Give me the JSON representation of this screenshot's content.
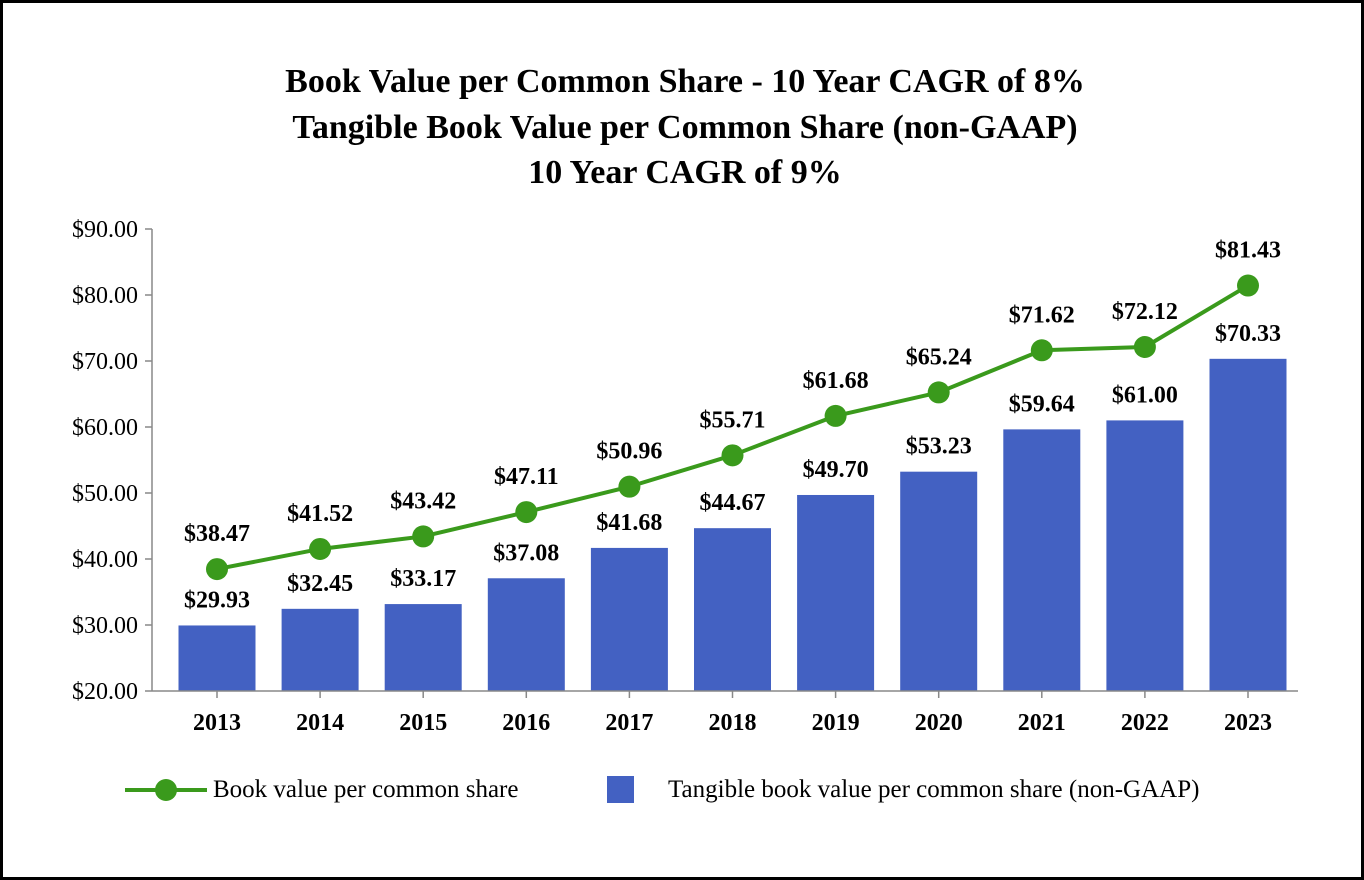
{
  "chart_data": {
    "type": "bar",
    "title_lines": [
      "Book Value per Common Share - 10 Year CAGR of 8%",
      "Tangible Book Value per Common Share (non-GAAP)",
      "10 Year CAGR of 9%"
    ],
    "categories": [
      "2013",
      "2014",
      "2015",
      "2016",
      "2017",
      "2018",
      "2019",
      "2020",
      "2021",
      "2022",
      "2023"
    ],
    "series": [
      {
        "name": "Tangible book value per common share (non-GAAP)",
        "kind": "bar",
        "color": "#4361C2",
        "values": [
          29.93,
          32.45,
          33.17,
          37.08,
          41.68,
          44.67,
          49.7,
          53.23,
          59.64,
          61.0,
          70.33
        ],
        "labels": [
          "$29.93",
          "$32.45",
          "$33.17",
          "$37.08",
          "$41.68",
          "$44.67",
          "$49.70",
          "$53.23",
          "$59.64",
          "$61.00",
          "$70.33"
        ]
      },
      {
        "name": "Book value per common share",
        "kind": "line",
        "color": "#3A9A1C",
        "values": [
          38.47,
          41.52,
          43.42,
          47.11,
          50.96,
          55.71,
          61.68,
          65.24,
          71.62,
          72.12,
          81.43
        ],
        "labels": [
          "$38.47",
          "$41.52",
          "$43.42",
          "$47.11",
          "$50.96",
          "$55.71",
          "$61.68",
          "$65.24",
          "$71.62",
          "$72.12",
          "$81.43"
        ]
      }
    ],
    "ylim": [
      20,
      90
    ],
    "yticks": [
      20,
      30,
      40,
      50,
      60,
      70,
      80,
      90
    ],
    "ytick_labels": [
      "$20.00",
      "$30.00",
      "$40.00",
      "$50.00",
      "$60.00",
      "$70.00",
      "$80.00",
      "$90.00"
    ],
    "xlabel": "",
    "ylabel": "",
    "grid": false,
    "legend_position": "bottom"
  },
  "legend": {
    "line_label": "Book value per common share",
    "bar_label": "Tangible book value per common share (non-GAAP)"
  }
}
